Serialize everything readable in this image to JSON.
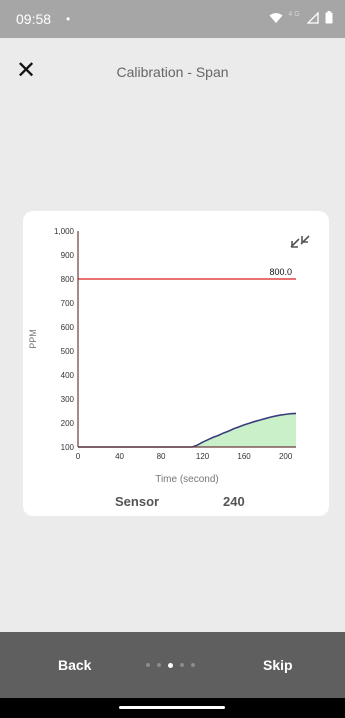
{
  "status_bar": {
    "time": "09:58",
    "dot": "•",
    "network": "4G"
  },
  "header": {
    "title": "Calibration - Span",
    "close_glyph": "✕"
  },
  "chart_data": {
    "type": "line",
    "xlabel": "Time (second)",
    "ylabel": "PPM",
    "xlim": [
      0,
      210
    ],
    "ylim": [
      100,
      1000
    ],
    "x_ticks": [
      "0",
      "40",
      "80",
      "120",
      "160",
      "200"
    ],
    "y_ticks": [
      "100",
      "200",
      "300",
      "400",
      "500",
      "600",
      "700",
      "800",
      "900",
      "1,000"
    ],
    "reference_line": {
      "value": 800,
      "label": "800.0",
      "color": "#e0443e"
    },
    "series": [
      {
        "color": "#3a3d7a",
        "fill": "#c9f0c9",
        "x": [
          0,
          20,
          40,
          60,
          80,
          100,
          110,
          115,
          120,
          125,
          130,
          135,
          140,
          145,
          150,
          155,
          160,
          165,
          170,
          175,
          180,
          185,
          190,
          195,
          200,
          205,
          210
        ],
        "values": [
          100,
          100,
          100,
          100,
          100,
          100,
          100,
          108,
          120,
          130,
          140,
          148,
          158,
          166,
          176,
          184,
          192,
          199,
          206,
          212,
          218,
          224,
          229,
          233,
          236,
          239,
          240
        ]
      }
    ]
  },
  "sensor": {
    "label": "Sensor",
    "value": "240"
  },
  "footer": {
    "back_label": "Back",
    "skip_label": "Skip",
    "page_count": 5,
    "active_page": 3
  },
  "colors": {
    "status_bar": "#a6a6a6",
    "background": "#ebebeb",
    "bottom_bar": "#5f5f5f"
  }
}
